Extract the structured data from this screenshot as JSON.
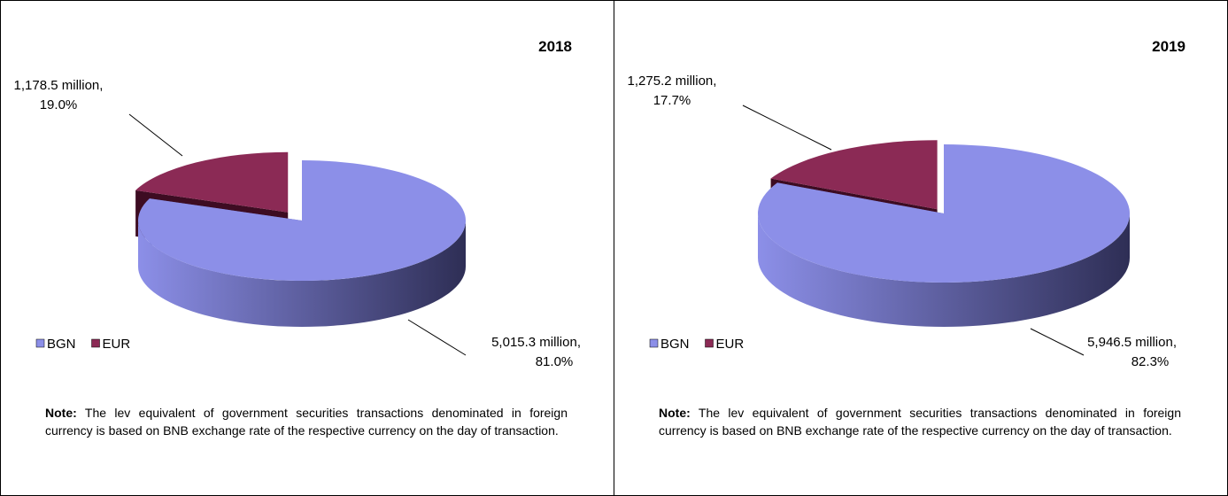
{
  "chart_data": [
    {
      "type": "pie",
      "title": "2018",
      "categories": [
        "BGN",
        "EUR"
      ],
      "values": [
        5015.3,
        1178.5
      ],
      "value_labels": [
        "5,015.3 million,",
        "1,178.5 million,"
      ],
      "percent_labels": [
        "81.0%",
        "19.0%"
      ],
      "colors": [
        "#8c8fe8",
        "#8b2a55"
      ],
      "legend": "bottom-left",
      "note": {
        "label": "Note:",
        "text": "The lev equivalent of government securities transactions denominated in foreign currency is based on BNB exchange rate of the respective currency on the day of transaction."
      }
    },
    {
      "type": "pie",
      "title": "2019",
      "categories": [
        "BGN",
        "EUR"
      ],
      "values": [
        5946.5,
        1275.2
      ],
      "value_labels": [
        "5,946.5 million,",
        "1,275.2 million,"
      ],
      "percent_labels": [
        "82.3%",
        "17.7%"
      ],
      "colors": [
        "#8c8fe8",
        "#8b2a55"
      ],
      "legend": "bottom-left",
      "note": {
        "label": "Note:",
        "text": "The lev equivalent of government securities transactions denominated in foreign currency is based on BNB exchange rate of the respective currency on the day of transaction."
      }
    }
  ]
}
